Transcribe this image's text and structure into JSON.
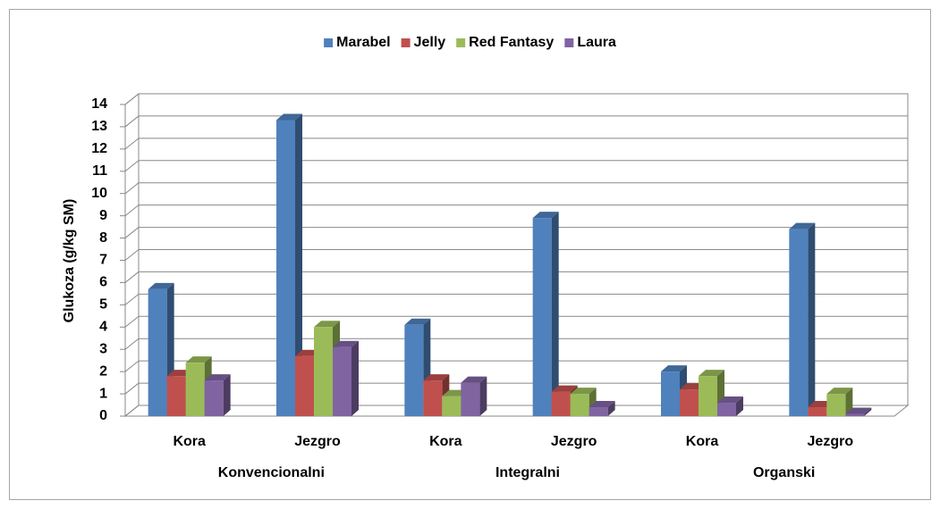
{
  "chart_data": {
    "type": "bar3d",
    "y_label": "Glukoza (g/kg SM)",
    "categories": [
      "Kora",
      "Jezgro",
      "Kora",
      "Jezgro",
      "Kora",
      "Jezgro"
    ],
    "groups": [
      "Konvencionalni",
      "Integralni",
      "Organski"
    ],
    "series": [
      {
        "name": "Marabel",
        "color": "#4f81bd",
        "values": [
          5.7,
          13.3,
          4.1,
          8.9,
          2.0,
          8.4
        ]
      },
      {
        "name": "Jelly",
        "color": "#c0504d",
        "values": [
          1.8,
          2.7,
          1.6,
          1.1,
          1.2,
          0.4
        ]
      },
      {
        "name": "Red Fantasy",
        "color": "#9bbb59",
        "values": [
          2.4,
          4.0,
          0.9,
          1.0,
          1.8,
          1.0
        ]
      },
      {
        "name": "Laura",
        "color": "#8064a2",
        "values": [
          1.6,
          3.1,
          1.5,
          0.4,
          0.6,
          0.1
        ]
      }
    ],
    "ylim": [
      0,
      14
    ],
    "yticks": [
      0,
      1,
      2,
      3,
      4,
      5,
      6,
      7,
      8,
      9,
      10,
      11,
      12,
      13,
      14
    ],
    "grid": true,
    "legend": "top"
  }
}
